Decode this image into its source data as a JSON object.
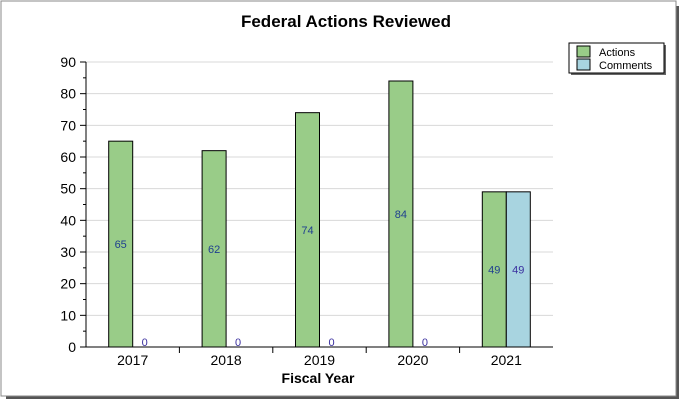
{
  "chart_data": {
    "type": "bar",
    "title": "Federal Actions Reviewed",
    "xlabel": "Fiscal Year",
    "ylabel": "",
    "categories": [
      "2017",
      "2018",
      "2019",
      "2020",
      "2021"
    ],
    "series": [
      {
        "name": "Actions",
        "values": [
          65,
          62,
          74,
          84,
          49
        ],
        "color": "#99cc88",
        "label_color": "#1f3f8f"
      },
      {
        "name": "Comments",
        "values": [
          0,
          0,
          0,
          0,
          49
        ],
        "color": "#a8d4e0",
        "label_color": "#3a2f9f"
      }
    ],
    "ylim": [
      0,
      90
    ],
    "yticks": [
      0,
      10,
      20,
      30,
      40,
      50,
      60,
      70,
      80,
      90
    ],
    "grid": true,
    "legend_position": "top-right"
  }
}
